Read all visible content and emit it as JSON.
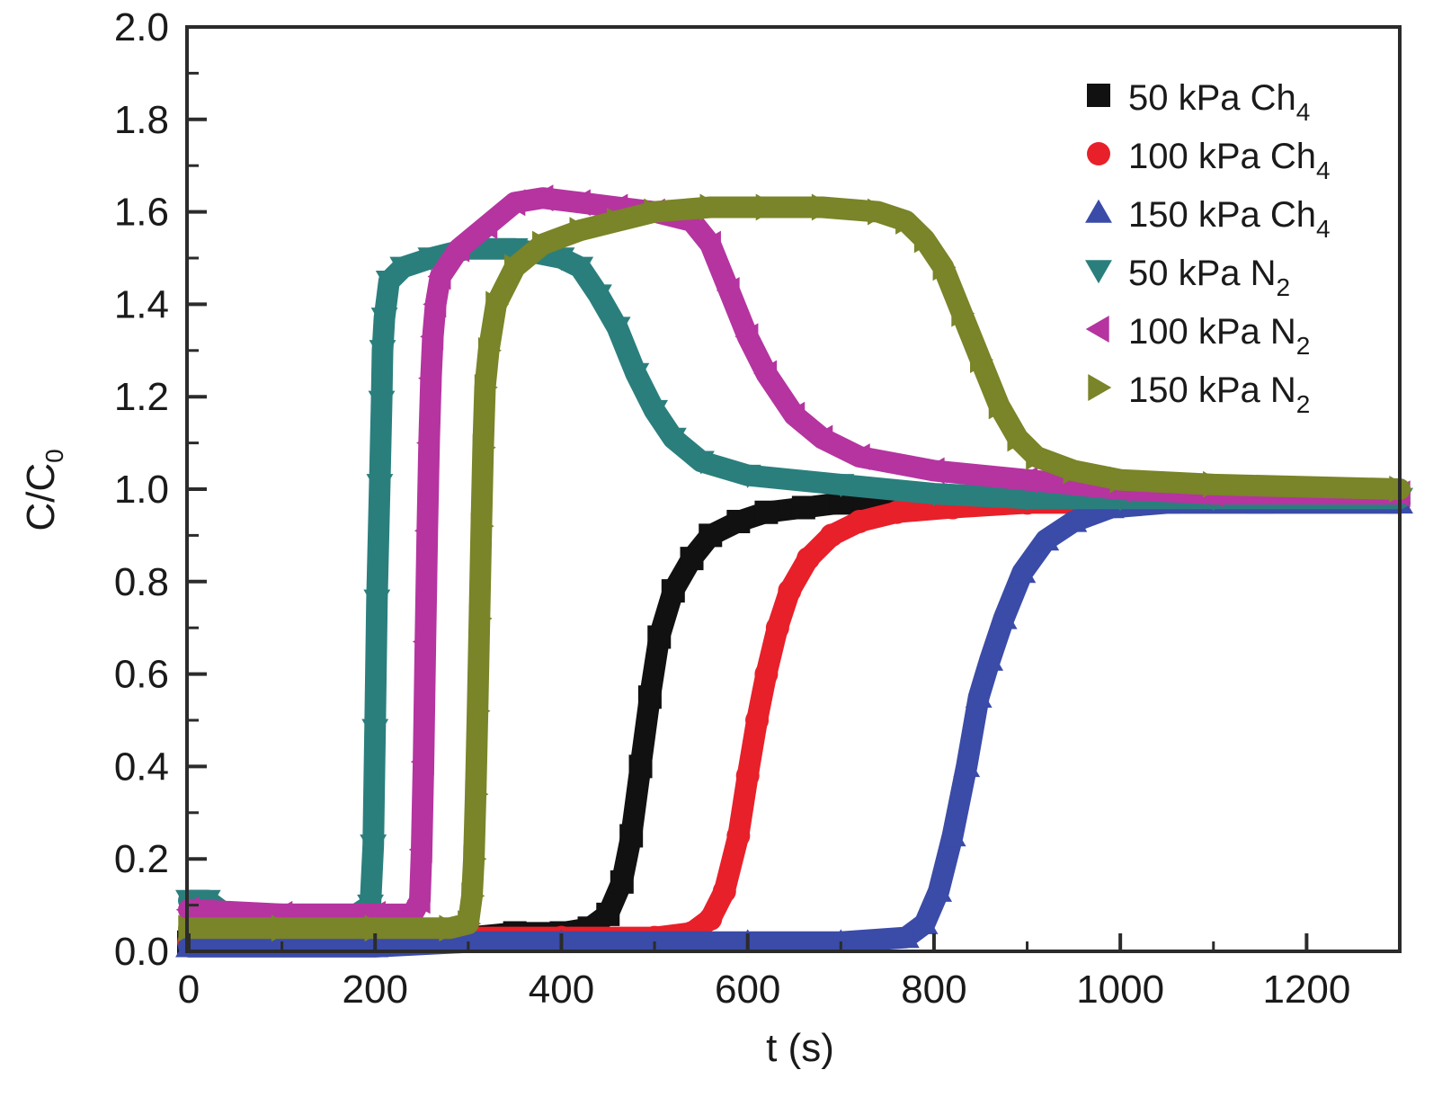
{
  "chart_data": {
    "type": "scatter",
    "title": "",
    "xlabel": "t (s)",
    "ylabel_main": "C/C",
    "ylabel_sub": "0",
    "xlim": [
      0,
      1300
    ],
    "ylim": [
      0,
      2.0
    ],
    "x_ticks": [
      0,
      200,
      400,
      600,
      800,
      1000,
      1200
    ],
    "x_tick_labels": [
      "0",
      "200",
      "400",
      "600",
      "800",
      "1000",
      "1200"
    ],
    "x_minor_ticks": [
      100,
      300,
      500,
      700,
      900,
      1100
    ],
    "y_ticks": [
      0.0,
      0.2,
      0.4,
      0.6,
      0.8,
      1.0,
      1.2,
      1.4,
      1.6,
      1.8,
      2.0
    ],
    "y_tick_labels": [
      "0.0",
      "0.2",
      "0.4",
      "0.6",
      "0.8",
      "1.0",
      "1.2",
      "1.4",
      "1.6",
      "1.8",
      "2.0"
    ],
    "y_minor_ticks": [
      0.1,
      0.3,
      0.5,
      0.7,
      0.9,
      1.1,
      1.3,
      1.5,
      1.7,
      1.9
    ],
    "grid": false,
    "legend_position": "top-right",
    "series": [
      {
        "name": "50 kPa Ch",
        "name_sub": "4",
        "color": "#111111",
        "marker": "square",
        "points": [
          [
            0,
            0.02
          ],
          [
            100,
            0.02
          ],
          [
            200,
            0.02
          ],
          [
            300,
            0.03
          ],
          [
            350,
            0.04
          ],
          [
            400,
            0.04
          ],
          [
            430,
            0.05
          ],
          [
            450,
            0.08
          ],
          [
            465,
            0.15
          ],
          [
            475,
            0.25
          ],
          [
            485,
            0.4
          ],
          [
            495,
            0.55
          ],
          [
            505,
            0.68
          ],
          [
            520,
            0.78
          ],
          [
            540,
            0.85
          ],
          [
            560,
            0.9
          ],
          [
            590,
            0.93
          ],
          [
            620,
            0.95
          ],
          [
            660,
            0.96
          ],
          [
            700,
            0.97
          ],
          [
            760,
            0.98
          ]
        ]
      },
      {
        "name": "100 kPa Ch",
        "name_sub": "4",
        "color": "#e8202a",
        "marker": "circle",
        "points": [
          [
            0,
            0.02
          ],
          [
            200,
            0.02
          ],
          [
            300,
            0.03
          ],
          [
            400,
            0.03
          ],
          [
            500,
            0.03
          ],
          [
            540,
            0.04
          ],
          [
            560,
            0.07
          ],
          [
            575,
            0.13
          ],
          [
            590,
            0.25
          ],
          [
            600,
            0.38
          ],
          [
            610,
            0.5
          ],
          [
            620,
            0.6
          ],
          [
            632,
            0.7
          ],
          [
            645,
            0.78
          ],
          [
            665,
            0.85
          ],
          [
            690,
            0.9
          ],
          [
            720,
            0.93
          ],
          [
            760,
            0.95
          ],
          [
            820,
            0.96
          ],
          [
            900,
            0.97
          ],
          [
            1000,
            0.97
          ]
        ]
      },
      {
        "name": "150 kPa Ch",
        "name_sub": "4",
        "color": "#3a4ba8",
        "marker": "triangle-up",
        "points": [
          [
            0,
            0.01
          ],
          [
            200,
            0.01
          ],
          [
            300,
            0.02
          ],
          [
            400,
            0.02
          ],
          [
            600,
            0.02
          ],
          [
            700,
            0.02
          ],
          [
            770,
            0.03
          ],
          [
            790,
            0.06
          ],
          [
            805,
            0.13
          ],
          [
            820,
            0.25
          ],
          [
            835,
            0.4
          ],
          [
            848,
            0.55
          ],
          [
            860,
            0.63
          ],
          [
            875,
            0.72
          ],
          [
            895,
            0.82
          ],
          [
            920,
            0.89
          ],
          [
            950,
            0.93
          ],
          [
            990,
            0.96
          ],
          [
            1050,
            0.97
          ],
          [
            1150,
            0.97
          ],
          [
            1300,
            0.97
          ]
        ]
      },
      {
        "name": "50 kPa N",
        "name_sub": "2",
        "color": "#2a7f7d",
        "marker": "triangle-down",
        "points": [
          [
            0,
            0.11
          ],
          [
            20,
            0.11
          ],
          [
            40,
            0.08
          ],
          [
            100,
            0.08
          ],
          [
            180,
            0.08
          ],
          [
            195,
            0.1
          ],
          [
            198,
            0.23
          ],
          [
            200,
            0.48
          ],
          [
            202,
            0.76
          ],
          [
            205,
            1.01
          ],
          [
            207,
            1.19
          ],
          [
            208,
            1.3
          ],
          [
            210,
            1.37
          ],
          [
            215,
            1.45
          ],
          [
            230,
            1.48
          ],
          [
            260,
            1.5
          ],
          [
            300,
            1.52
          ],
          [
            350,
            1.52
          ],
          [
            400,
            1.5
          ],
          [
            420,
            1.48
          ],
          [
            440,
            1.42
          ],
          [
            460,
            1.35
          ],
          [
            480,
            1.25
          ],
          [
            500,
            1.17
          ],
          [
            520,
            1.11
          ],
          [
            550,
            1.06
          ],
          [
            600,
            1.03
          ],
          [
            700,
            1.01
          ],
          [
            800,
            0.99
          ],
          [
            900,
            0.98
          ],
          [
            1000,
            0.98
          ],
          [
            1100,
            0.98
          ],
          [
            1300,
            0.98
          ]
        ]
      },
      {
        "name": "100 kPa N",
        "name_sub": "2",
        "color": "#b534a0",
        "marker": "triangle-left",
        "points": [
          [
            0,
            0.09
          ],
          [
            100,
            0.08
          ],
          [
            200,
            0.08
          ],
          [
            240,
            0.08
          ],
          [
            248,
            0.11
          ],
          [
            250,
            0.22
          ],
          [
            252,
            0.41
          ],
          [
            254,
            0.67
          ],
          [
            256,
            0.91
          ],
          [
            258,
            1.1
          ],
          [
            260,
            1.24
          ],
          [
            262,
            1.33
          ],
          [
            265,
            1.4
          ],
          [
            270,
            1.46
          ],
          [
            290,
            1.52
          ],
          [
            320,
            1.57
          ],
          [
            350,
            1.62
          ],
          [
            380,
            1.63
          ],
          [
            420,
            1.62
          ],
          [
            460,
            1.61
          ],
          [
            500,
            1.6
          ],
          [
            540,
            1.58
          ],
          [
            560,
            1.53
          ],
          [
            580,
            1.43
          ],
          [
            600,
            1.33
          ],
          [
            620,
            1.25
          ],
          [
            650,
            1.16
          ],
          [
            680,
            1.11
          ],
          [
            720,
            1.07
          ],
          [
            800,
            1.04
          ],
          [
            900,
            1.02
          ],
          [
            1000,
            1.0
          ],
          [
            1100,
            0.99
          ],
          [
            1300,
            0.99
          ]
        ]
      },
      {
        "name": "150 kPa N",
        "name_sub": "2",
        "color": "#7a8428",
        "marker": "triangle-right",
        "points": [
          [
            0,
            0.05
          ],
          [
            100,
            0.05
          ],
          [
            200,
            0.05
          ],
          [
            280,
            0.05
          ],
          [
            300,
            0.06
          ],
          [
            304,
            0.12
          ],
          [
            306,
            0.2
          ],
          [
            308,
            0.34
          ],
          [
            310,
            0.52
          ],
          [
            312,
            0.72
          ],
          [
            314,
            0.92
          ],
          [
            316,
            1.09
          ],
          [
            318,
            1.22
          ],
          [
            322,
            1.3
          ],
          [
            330,
            1.4
          ],
          [
            350,
            1.48
          ],
          [
            380,
            1.53
          ],
          [
            420,
            1.56
          ],
          [
            460,
            1.58
          ],
          [
            500,
            1.6
          ],
          [
            560,
            1.61
          ],
          [
            620,
            1.61
          ],
          [
            680,
            1.61
          ],
          [
            740,
            1.6
          ],
          [
            770,
            1.58
          ],
          [
            790,
            1.54
          ],
          [
            810,
            1.48
          ],
          [
            830,
            1.38
          ],
          [
            850,
            1.28
          ],
          [
            870,
            1.18
          ],
          [
            890,
            1.11
          ],
          [
            910,
            1.07
          ],
          [
            950,
            1.04
          ],
          [
            1000,
            1.02
          ],
          [
            1100,
            1.01
          ],
          [
            1300,
            1.0
          ]
        ]
      }
    ]
  }
}
